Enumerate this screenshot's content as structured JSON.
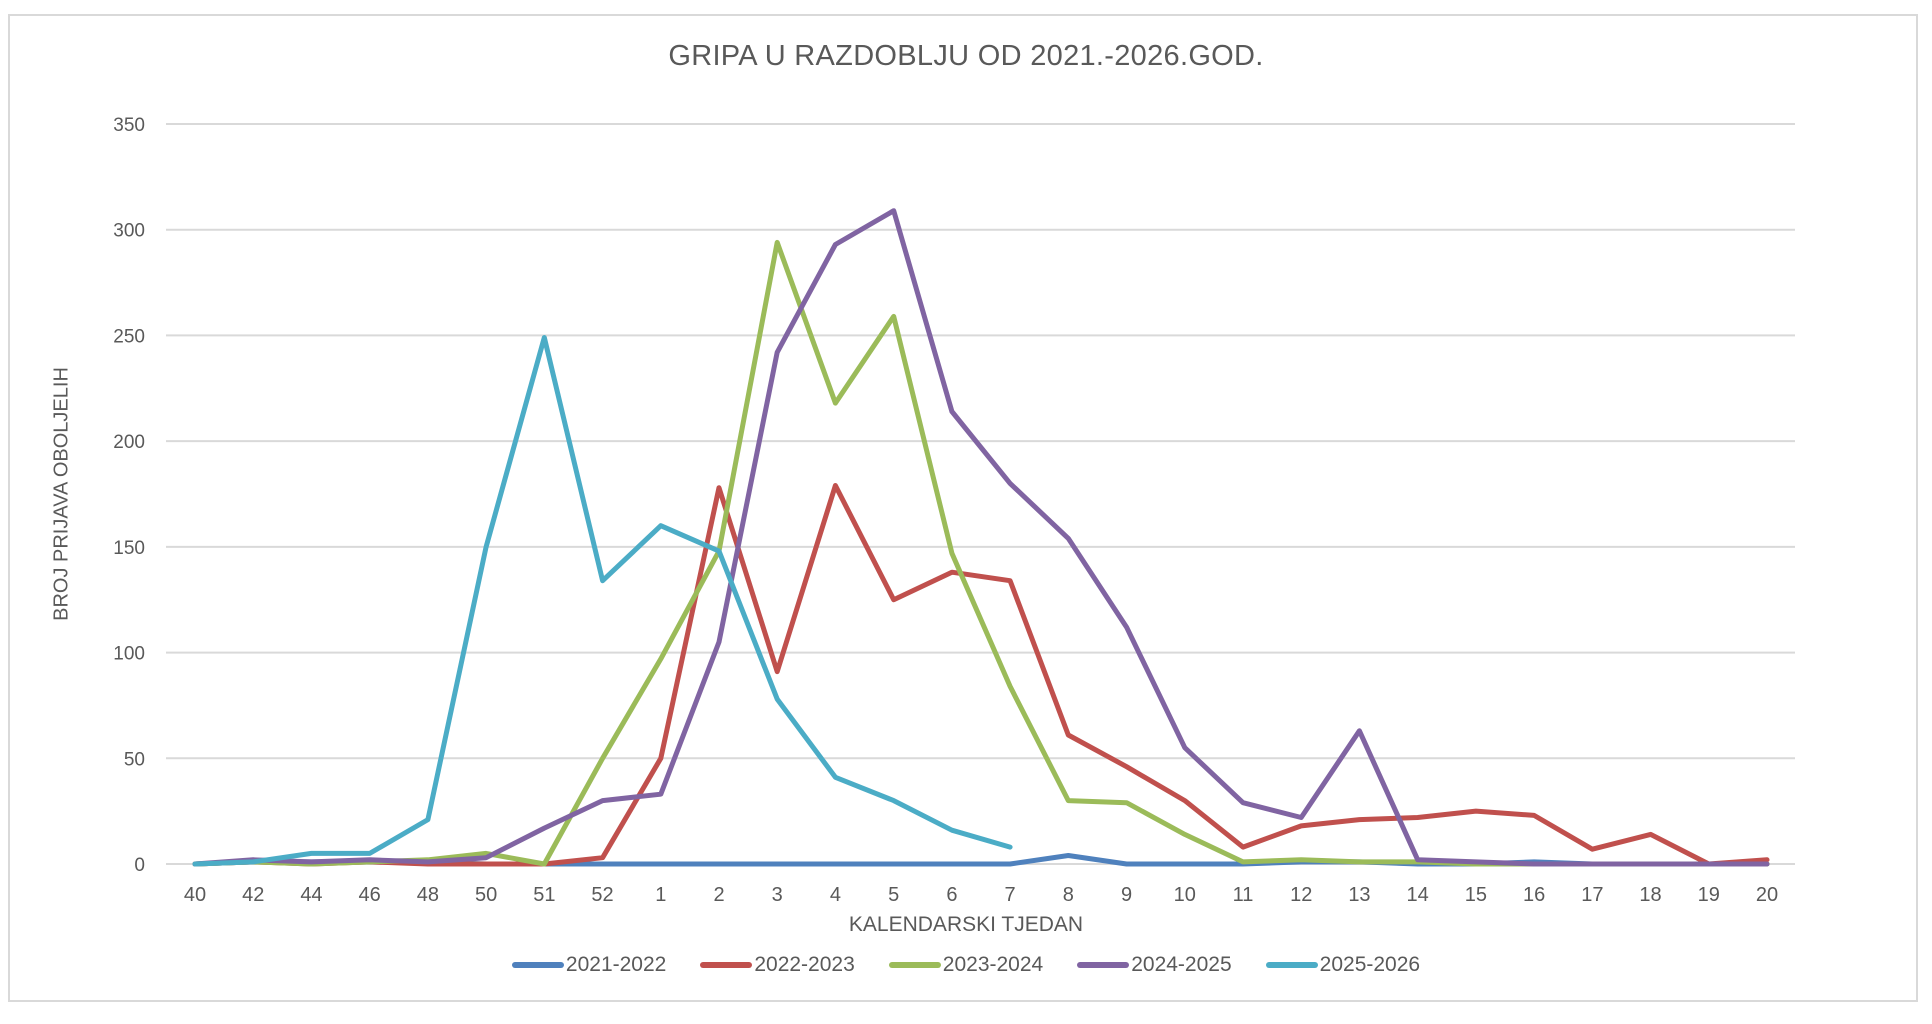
{
  "chart_data": {
    "type": "line",
    "title": "GRIPA U RAZDOBLJU OD 2021.-2026.GOD.",
    "xlabel": "KALENDARSKI TJEDAN",
    "ylabel": "BROJ PRIJAVA OBOLJELIH",
    "ylim": [
      0,
      350
    ],
    "yticks": [
      0,
      50,
      100,
      150,
      200,
      250,
      300,
      350
    ],
    "grid": true,
    "legend_position": "bottom",
    "categories": [
      "40",
      "42",
      "44",
      "46",
      "48",
      "50",
      "51",
      "52",
      "1",
      "2",
      "3",
      "4",
      "5",
      "6",
      "7",
      "8",
      "9",
      "10",
      "11",
      "12",
      "13",
      "14",
      "15",
      "16",
      "17",
      "18",
      "19",
      "20"
    ],
    "series": [
      {
        "name": "2021-2022",
        "color": "#4f81bd",
        "values": [
          0,
          1,
          1,
          1,
          1,
          0,
          0,
          0,
          0,
          0,
          0,
          0,
          0,
          0,
          0,
          4,
          0,
          0,
          0,
          1,
          1,
          0,
          0,
          1,
          0,
          0,
          0,
          0
        ]
      },
      {
        "name": "2022-2023",
        "color": "#c0504d",
        "values": [
          0,
          1,
          0,
          1,
          0,
          0,
          0,
          3,
          50,
          178,
          91,
          179,
          125,
          138,
          134,
          61,
          46,
          30,
          8,
          18,
          21,
          22,
          25,
          23,
          7,
          14,
          0,
          2
        ]
      },
      {
        "name": "2023-2024",
        "color": "#9bbb59",
        "values": [
          0,
          1,
          0,
          1,
          2,
          5,
          0,
          50,
          97,
          148,
          294,
          218,
          259,
          147,
          84,
          30,
          29,
          14,
          1,
          2,
          1,
          1,
          0,
          0,
          0,
          0,
          0,
          0
        ]
      },
      {
        "name": "2024-2025",
        "color": "#8064a2",
        "values": [
          0,
          2,
          1,
          2,
          1,
          3,
          17,
          30,
          33,
          105,
          242,
          293,
          309,
          214,
          180,
          154,
          112,
          55,
          29,
          22,
          63,
          2,
          1,
          0,
          0,
          0,
          0,
          0
        ]
      },
      {
        "name": "2025-2026",
        "color": "#4bacc6",
        "values": [
          0,
          1,
          5,
          5,
          21,
          150,
          249,
          134,
          160,
          148,
          78,
          41,
          30,
          16,
          8,
          null,
          null,
          null,
          null,
          null,
          null,
          null,
          null,
          null,
          null,
          null,
          null,
          null
        ]
      }
    ]
  }
}
